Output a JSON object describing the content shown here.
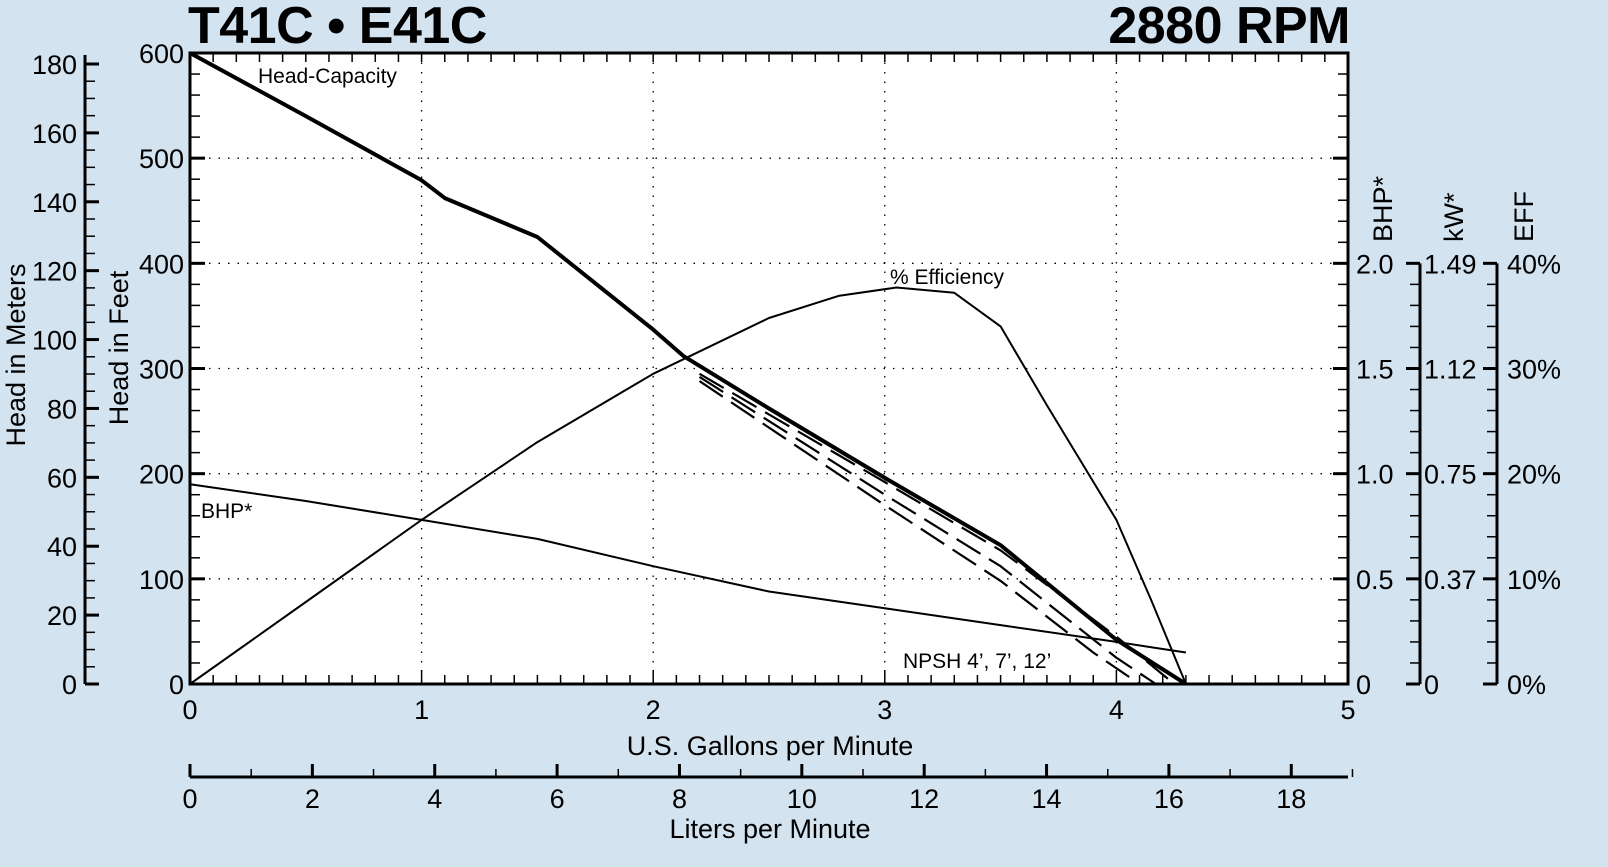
{
  "header": {
    "model": "T41C • E41C",
    "speed": "2880 RPM"
  },
  "chart_data": {
    "type": "line",
    "title": "T41C • E41C",
    "subtitle": "2880 RPM",
    "xlabel": "U.S. Gallons per Minute",
    "xlabel_secondary": "Liters per Minute",
    "ylabel_left_outer": "Head in Meters",
    "ylabel_left_inner": "Head in Feet",
    "ylabel_right": [
      "BHP*",
      "kW*",
      "EFF"
    ],
    "xlim": [
      0,
      5
    ],
    "ylim": [
      0,
      600
    ],
    "grid": "dotted",
    "x_ticks": [
      "0",
      "1",
      "2",
      "3",
      "4",
      "5"
    ],
    "lpm_ticks": [
      "0",
      "2",
      "4",
      "6",
      "8",
      "10",
      "12",
      "14",
      "16",
      "18"
    ],
    "feet_ticks": [
      "0",
      "100",
      "200",
      "300",
      "400",
      "500",
      "600"
    ],
    "meters_ticks": [
      "0",
      "20",
      "40",
      "60",
      "80",
      "100",
      "120",
      "140",
      "160",
      "180"
    ],
    "bhp_ticks": [
      "0",
      "0.5",
      "1.0",
      "1.5",
      "2.0"
    ],
    "kw_ticks": [
      "0",
      "0.37",
      "0.75",
      "1.12",
      "1.49"
    ],
    "eff_ticks": [
      "0%",
      "10%",
      "20%",
      "30%",
      "40%"
    ],
    "series": [
      {
        "name": "Head-Capacity",
        "unit": "ft",
        "x": [
          0,
          0.5,
          1,
          1.1,
          1.5,
          2,
          2.13,
          2.5,
          3,
          3.5,
          4,
          4.3
        ],
        "values": [
          600,
          540,
          479,
          462,
          425,
          337,
          312,
          262,
          196,
          132,
          42,
          0
        ]
      },
      {
        "name": "% Efficiency",
        "unit": "%",
        "x": [
          0,
          0.5,
          1,
          1.5,
          2,
          2.5,
          2.8,
          3.05,
          3.3,
          3.5,
          3.7,
          4,
          4.15,
          4.3
        ],
        "values": [
          0,
          7.8,
          15.6,
          23.0,
          29.5,
          34.8,
          36.9,
          37.7,
          37.2,
          34.0,
          26.5,
          15.6,
          8.0,
          0
        ]
      },
      {
        "name": "BHP*",
        "unit": "hp",
        "x": [
          0,
          0.5,
          1,
          1.5,
          2,
          2.5,
          3,
          3.5,
          4,
          4.3
        ],
        "values": [
          0.95,
          0.87,
          0.78,
          0.69,
          0.56,
          0.44,
          0.36,
          0.28,
          0.2,
          0.15
        ]
      },
      {
        "name": "NPSH 4'",
        "unit": "ft",
        "style": "dashed",
        "x": [
          2.2,
          3,
          3.5,
          4,
          4.25
        ],
        "values": [
          295,
          192,
          127,
          45,
          0
        ]
      },
      {
        "name": "NPSH 7'",
        "unit": "ft",
        "style": "dashed",
        "x": [
          2.2,
          3,
          3.5,
          4,
          4.17
        ],
        "values": [
          292,
          180,
          112,
          25,
          0
        ]
      },
      {
        "name": "NPSH 12'",
        "unit": "ft",
        "style": "dashed",
        "x": [
          2.2,
          3,
          3.5,
          3.9,
          4.1
        ],
        "values": [
          288,
          170,
          98,
          30,
          0
        ]
      }
    ],
    "annotations": [
      "Head-Capacity",
      "% Efficiency",
      "BHP*",
      "NPSH 4’, 7’, 12’"
    ]
  }
}
